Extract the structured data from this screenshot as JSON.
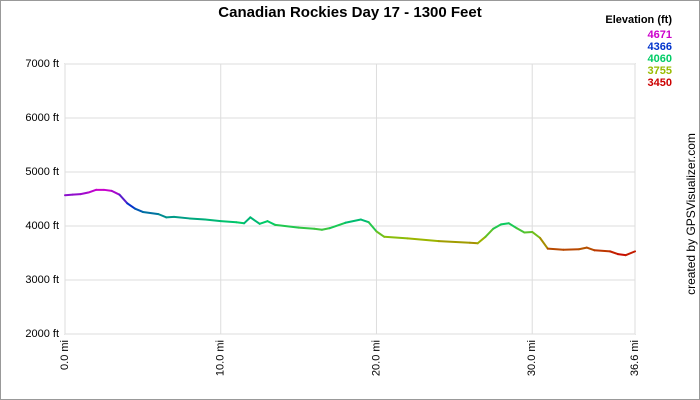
{
  "chart_data": {
    "type": "line",
    "title": "Canadian Rockies Day 17 - 1300 Feet",
    "x": [
      0,
      0.5,
      1,
      1.5,
      2,
      2.5,
      3,
      3.5,
      4,
      4.5,
      5,
      6,
      6.5,
      7,
      8,
      9,
      10,
      11,
      11.5,
      11.9,
      12.5,
      13,
      13.5,
      15,
      16,
      16.5,
      17,
      18,
      19,
      19.5,
      20,
      20.5,
      22,
      24,
      26,
      26.5,
      27,
      27.5,
      28,
      28.5,
      29,
      29.5,
      30,
      30.5,
      31,
      32,
      33,
      33.5,
      34,
      35,
      35.5,
      36,
      36.6
    ],
    "series": [
      {
        "name": "Elevation",
        "values": [
          4570,
          4580,
          4590,
          4620,
          4670,
          4670,
          4650,
          4580,
          4420,
          4320,
          4260,
          4220,
          4160,
          4170,
          4140,
          4120,
          4090,
          4070,
          4050,
          4160,
          4040,
          4090,
          4020,
          3970,
          3950,
          3930,
          3960,
          4060,
          4120,
          4070,
          3900,
          3800,
          3770,
          3720,
          3690,
          3680,
          3800,
          3950,
          4030,
          4050,
          3960,
          3880,
          3890,
          3780,
          3580,
          3560,
          3570,
          3600,
          3550,
          3530,
          3480,
          3460,
          3530
        ]
      }
    ],
    "xlim": [
      0,
      36.6
    ],
    "xticks": [
      {
        "value": 0,
        "label": "0.0 mi"
      },
      {
        "value": 10,
        "label": "10.0 mi"
      },
      {
        "value": 20,
        "label": "20.0 mi"
      },
      {
        "value": 30,
        "label": "30.0 mi"
      },
      {
        "value": 36.6,
        "label": "36.6 mi"
      }
    ],
    "ylim": [
      2000,
      7000
    ],
    "yticks": [
      {
        "value": 2000,
        "label": "2000 ft"
      },
      {
        "value": 3000,
        "label": "3000 ft"
      },
      {
        "value": 4000,
        "label": "4000 ft"
      },
      {
        "value": 5000,
        "label": "5000 ft"
      },
      {
        "value": 6000,
        "label": "6000 ft"
      },
      {
        "value": 7000,
        "label": "7000 ft"
      }
    ],
    "grid": true,
    "color_scale": {
      "title": "Elevation (ft)",
      "values": [
        4671,
        4366,
        4060,
        3755,
        3450
      ],
      "colors": [
        "#cc00cc",
        "#0033cc",
        "#00cc66",
        "#99bb00",
        "#cc0000"
      ]
    },
    "credit": "created by GPSVisualizer.com"
  }
}
